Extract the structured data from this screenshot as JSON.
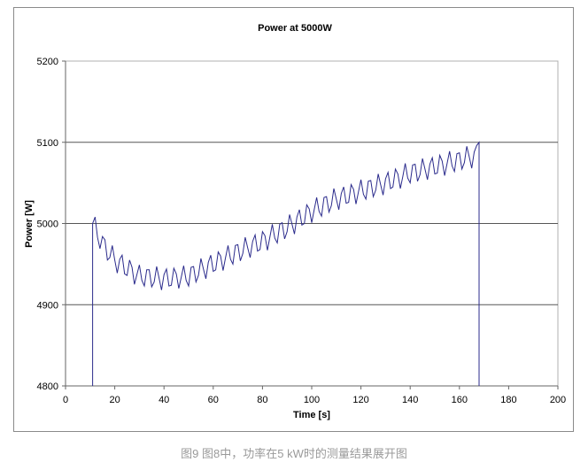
{
  "caption": "图9 图8中，功率在5 kW时的测量结果展开图",
  "chart_data": {
    "type": "line",
    "title": "Power at 5000W",
    "xlabel": "Time [s]",
    "ylabel": "Power [W]",
    "xlim": [
      0,
      200
    ],
    "ylim": [
      4800,
      5200
    ],
    "xticks": [
      0,
      20,
      40,
      60,
      80,
      100,
      120,
      140,
      160,
      180,
      200
    ],
    "yticks": [
      4800,
      4900,
      5000,
      5100,
      5200
    ],
    "grid": "horizontal major",
    "legend": "none",
    "line_color": "#2b2b8c",
    "series": [
      {
        "x": [
          11,
          11,
          12,
          13,
          14,
          15,
          16,
          17,
          18,
          19,
          20,
          21,
          22,
          23,
          24,
          25,
          26,
          27,
          28,
          29,
          30,
          31,
          32,
          33,
          34,
          35,
          36,
          37,
          38,
          39,
          40,
          41,
          42,
          43,
          44,
          45,
          46,
          47,
          48,
          49,
          50,
          51,
          52,
          53,
          54,
          55,
          56,
          57,
          58,
          59,
          60,
          61,
          62,
          63,
          64,
          65,
          66,
          67,
          68,
          69,
          70,
          71,
          72,
          73,
          74,
          75,
          76,
          77,
          78,
          79,
          80,
          81,
          82,
          83,
          84,
          85,
          86,
          87,
          88,
          89,
          90,
          91,
          92,
          93,
          94,
          95,
          96,
          97,
          98,
          99,
          100,
          101,
          102,
          103,
          104,
          105,
          106,
          107,
          108,
          109,
          110,
          111,
          112,
          113,
          114,
          115,
          116,
          117,
          118,
          119,
          120,
          121,
          122,
          123,
          124,
          125,
          126,
          127,
          128,
          129,
          130,
          131,
          132,
          133,
          134,
          135,
          136,
          137,
          138,
          139,
          140,
          141,
          142,
          143,
          144,
          145,
          146,
          147,
          148,
          149,
          150,
          151,
          152,
          153,
          154,
          155,
          156,
          157,
          158,
          159,
          160,
          161,
          162,
          163,
          164,
          165,
          166,
          167,
          168,
          168
        ],
        "y": [
          4800,
          5000,
          5008,
          4983,
          4969,
          4984,
          4980,
          4955,
          4958,
          4973,
          4955,
          4939,
          4956,
          4961,
          4938,
          4936,
          4955,
          4946,
          4925,
          4937,
          4949,
          4930,
          4923,
          4943,
          4943,
          4922,
          4928,
          4947,
          4933,
          4918,
          4937,
          4944,
          4923,
          4924,
          4945,
          4938,
          4920,
          4934,
          4948,
          4930,
          4923,
          4946,
          4947,
          4928,
          4936,
          4957,
          4944,
          4932,
          4952,
          4961,
          4941,
          4943,
          4965,
          4960,
          4942,
          4958,
          4973,
          4956,
          4950,
          4973,
          4974,
          4954,
          4963,
          4983,
          4970,
          4958,
          4978,
          4986,
          4966,
          4968,
          4990,
          4985,
          4967,
          4983,
          4999,
          4982,
          4976,
          4999,
          5001,
          4981,
          4990,
          5011,
          4999,
          4987,
          5008,
          5017,
          4998,
          5000,
          5023,
          5018,
          5001,
          5017,
          5032,
          5015,
          5009,
          5032,
          5033,
          5014,
          5022,
          5043,
          5030,
          5017,
          5037,
          5045,
          5025,
          5026,
          5048,
          5042,
          5024,
          5039,
          5054,
          5036,
          5030,
          5052,
          5053,
          5033,
          5041,
          5061,
          5048,
          5035,
          5055,
          5063,
          5043,
          5045,
          5067,
          5061,
          5043,
          5058,
          5074,
          5056,
          5050,
          5072,
          5073,
          5052,
          5060,
          5080,
          5067,
          5054,
          5073,
          5081,
          5061,
          5062,
          5084,
          5077,
          5059,
          5074,
          5089,
          5071,
          5064,
          5086,
          5087,
          5067,
          5075,
          5095,
          5082,
          5068,
          5088,
          5096,
          5100,
          4800
        ]
      }
    ]
  }
}
